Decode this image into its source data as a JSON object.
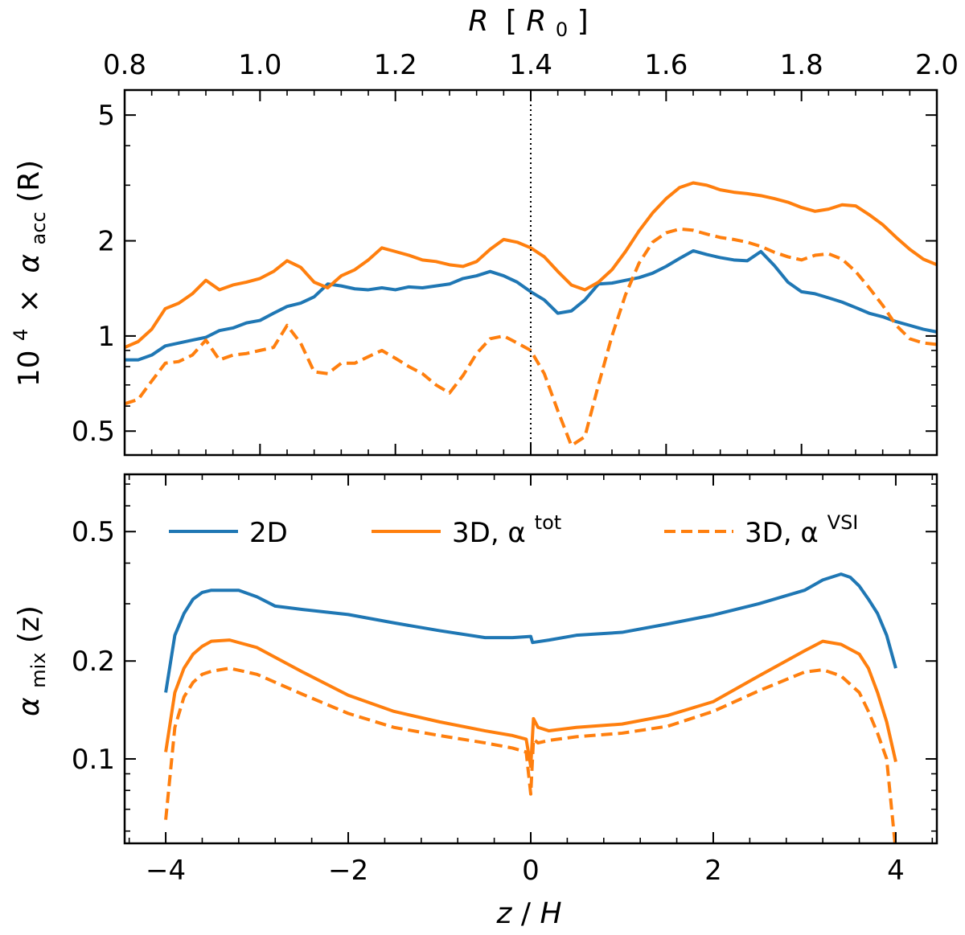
{
  "chart_data": [
    {
      "type": "line",
      "panel": "top",
      "title": "",
      "xlabel_top": {
        "main": "R",
        "bracket_open": "[",
        "unit_base": "R",
        "unit_sub": "0",
        "bracket_close": "]"
      },
      "ylabel": {
        "prefix": "10",
        "prefix_sup": "4",
        "times": "×",
        "symbol": "α",
        "sub": "acc",
        "arg": "(R)"
      },
      "xscale": "linear",
      "yscale": "log",
      "xlim": [
        0.8,
        2.0
      ],
      "ylim": [
        0.42,
        6.0
      ],
      "xticks": [
        0.8,
        1.0,
        1.2,
        1.4,
        1.6,
        1.8,
        2.0
      ],
      "xtick_labels": [
        "0.8",
        "1.0",
        "1.2",
        "1.4",
        "1.6",
        "1.8",
        "2.0"
      ],
      "yticks": [
        0.5,
        1,
        2,
        5
      ],
      "ytick_labels": [
        "0.5",
        "1",
        "2",
        "5"
      ],
      "vline": {
        "x": 1.4,
        "style": "dotted"
      },
      "series": [
        {
          "name": "2D",
          "color": "#1f77b4",
          "dash": "solid",
          "x": [
            0.8,
            0.82,
            0.84,
            0.86,
            0.88,
            0.9,
            0.92,
            0.94,
            0.96,
            0.98,
            1.0,
            1.02,
            1.04,
            1.06,
            1.08,
            1.1,
            1.12,
            1.14,
            1.16,
            1.18,
            1.2,
            1.22,
            1.24,
            1.26,
            1.28,
            1.3,
            1.32,
            1.34,
            1.36,
            1.38,
            1.4,
            1.42,
            1.44,
            1.46,
            1.48,
            1.5,
            1.52,
            1.54,
            1.56,
            1.58,
            1.6,
            1.62,
            1.64,
            1.66,
            1.68,
            1.7,
            1.72,
            1.74,
            1.76,
            1.78,
            1.8,
            1.82,
            1.84,
            1.86,
            1.88,
            1.9,
            1.92,
            1.94,
            1.96,
            1.98,
            2.0
          ],
          "y": [
            0.84,
            0.84,
            0.87,
            0.93,
            0.95,
            0.97,
            0.99,
            1.04,
            1.06,
            1.1,
            1.12,
            1.18,
            1.24,
            1.27,
            1.33,
            1.46,
            1.44,
            1.41,
            1.4,
            1.42,
            1.4,
            1.43,
            1.42,
            1.44,
            1.46,
            1.52,
            1.55,
            1.6,
            1.55,
            1.48,
            1.38,
            1.3,
            1.18,
            1.2,
            1.3,
            1.46,
            1.47,
            1.5,
            1.53,
            1.58,
            1.66,
            1.76,
            1.86,
            1.81,
            1.77,
            1.74,
            1.73,
            1.85,
            1.67,
            1.48,
            1.38,
            1.36,
            1.32,
            1.28,
            1.23,
            1.18,
            1.15,
            1.11,
            1.08,
            1.05,
            1.03
          ]
        },
        {
          "name": "3D, α^tot",
          "color": "#ff7f0e",
          "dash": "solid",
          "x": [
            0.8,
            0.82,
            0.84,
            0.86,
            0.88,
            0.9,
            0.92,
            0.94,
            0.96,
            0.98,
            1.0,
            1.02,
            1.04,
            1.06,
            1.08,
            1.1,
            1.12,
            1.14,
            1.16,
            1.18,
            1.2,
            1.22,
            1.24,
            1.26,
            1.28,
            1.3,
            1.32,
            1.34,
            1.36,
            1.38,
            1.4,
            1.42,
            1.44,
            1.46,
            1.48,
            1.5,
            1.52,
            1.54,
            1.56,
            1.58,
            1.6,
            1.62,
            1.64,
            1.66,
            1.68,
            1.7,
            1.72,
            1.74,
            1.76,
            1.78,
            1.8,
            1.82,
            1.84,
            1.86,
            1.88,
            1.9,
            1.92,
            1.94,
            1.96,
            1.98,
            2.0
          ],
          "y": [
            0.92,
            0.96,
            1.05,
            1.22,
            1.27,
            1.36,
            1.5,
            1.4,
            1.45,
            1.48,
            1.52,
            1.6,
            1.73,
            1.65,
            1.48,
            1.42,
            1.55,
            1.62,
            1.74,
            1.9,
            1.85,
            1.8,
            1.74,
            1.72,
            1.68,
            1.66,
            1.72,
            1.88,
            2.02,
            1.98,
            1.9,
            1.78,
            1.6,
            1.45,
            1.4,
            1.48,
            1.62,
            1.85,
            2.15,
            2.45,
            2.72,
            2.95,
            3.05,
            3.0,
            2.9,
            2.85,
            2.82,
            2.78,
            2.72,
            2.65,
            2.55,
            2.48,
            2.52,
            2.6,
            2.58,
            2.42,
            2.25,
            2.05,
            1.88,
            1.75,
            1.68
          ]
        },
        {
          "name": "3D, α^VSI",
          "color": "#ff7f0e",
          "dash": "dashed",
          "x": [
            0.8,
            0.82,
            0.84,
            0.86,
            0.88,
            0.9,
            0.92,
            0.94,
            0.96,
            0.98,
            1.0,
            1.02,
            1.04,
            1.06,
            1.08,
            1.1,
            1.12,
            1.14,
            1.16,
            1.18,
            1.2,
            1.22,
            1.24,
            1.26,
            1.28,
            1.3,
            1.32,
            1.34,
            1.36,
            1.38,
            1.4,
            1.42,
            1.44,
            1.46,
            1.48,
            1.5,
            1.52,
            1.54,
            1.56,
            1.58,
            1.6,
            1.62,
            1.64,
            1.66,
            1.68,
            1.7,
            1.72,
            1.74,
            1.76,
            1.78,
            1.8,
            1.82,
            1.84,
            1.86,
            1.88,
            1.9,
            1.92,
            1.94,
            1.96,
            1.98,
            2.0
          ],
          "y": [
            0.61,
            0.63,
            0.72,
            0.82,
            0.83,
            0.87,
            0.97,
            0.84,
            0.87,
            0.88,
            0.9,
            0.92,
            1.08,
            0.95,
            0.77,
            0.76,
            0.82,
            0.82,
            0.86,
            0.9,
            0.85,
            0.8,
            0.76,
            0.7,
            0.66,
            0.75,
            0.88,
            0.98,
            1.0,
            0.95,
            0.9,
            0.76,
            0.58,
            0.45,
            0.48,
            0.7,
            1.0,
            1.35,
            1.7,
            1.98,
            2.12,
            2.18,
            2.16,
            2.1,
            2.05,
            2.02,
            1.98,
            1.92,
            1.84,
            1.78,
            1.74,
            1.8,
            1.82,
            1.75,
            1.6,
            1.42,
            1.25,
            1.08,
            0.98,
            0.95,
            0.94
          ]
        }
      ]
    },
    {
      "type": "line",
      "panel": "bottom",
      "title": "",
      "xlabel": {
        "a": "z",
        "slash": "/",
        "b": "H"
      },
      "ylabel": {
        "symbol": "α",
        "sub": "mix",
        "arg": "(z)"
      },
      "xscale": "linear",
      "yscale": "log",
      "xlim": [
        -4.45,
        4.45
      ],
      "ylim": [
        0.055,
        0.75
      ],
      "xticks": [
        -4,
        -2,
        0,
        2,
        4
      ],
      "xtick_labels": [
        "−4",
        "−2",
        "0",
        "2",
        "4"
      ],
      "yticks": [
        0.1,
        0.2,
        0.5
      ],
      "ytick_labels": [
        "0.1",
        "0.2",
        "0.5"
      ],
      "legend": {
        "location": "upper-center",
        "columns": 3
      },
      "series": [
        {
          "name": "2D",
          "label": "2D",
          "color": "#1f77b4",
          "dash": "solid",
          "x": [
            -4.0,
            -3.9,
            -3.8,
            -3.7,
            -3.6,
            -3.5,
            -3.4,
            -3.2,
            -3.0,
            -2.8,
            -2.5,
            -2.0,
            -1.5,
            -1.0,
            -0.5,
            -0.2,
            0.0,
            0.02,
            0.2,
            0.5,
            1.0,
            1.5,
            2.0,
            2.5,
            3.0,
            3.2,
            3.4,
            3.5,
            3.6,
            3.7,
            3.8,
            3.9,
            4.0
          ],
          "y": [
            0.16,
            0.24,
            0.28,
            0.31,
            0.325,
            0.33,
            0.33,
            0.33,
            0.315,
            0.295,
            0.288,
            0.278,
            0.262,
            0.248,
            0.236,
            0.236,
            0.238,
            0.228,
            0.232,
            0.24,
            0.245,
            0.26,
            0.277,
            0.3,
            0.33,
            0.355,
            0.37,
            0.362,
            0.34,
            0.31,
            0.28,
            0.24,
            0.19
          ]
        },
        {
          "name": "3D, α^tot",
          "label_main": "3D, α",
          "label_sup": "tot",
          "color": "#ff7f0e",
          "dash": "solid",
          "x": [
            -4.0,
            -3.9,
            -3.8,
            -3.7,
            -3.6,
            -3.5,
            -3.3,
            -3.0,
            -2.5,
            -2.0,
            -1.5,
            -1.0,
            -0.5,
            -0.2,
            -0.05,
            0.0,
            0.03,
            0.08,
            0.2,
            0.5,
            1.0,
            1.5,
            2.0,
            2.5,
            3.0,
            3.2,
            3.4,
            3.6,
            3.7,
            3.8,
            3.9,
            4.0
          ],
          "y": [
            0.105,
            0.16,
            0.19,
            0.21,
            0.222,
            0.23,
            0.232,
            0.22,
            0.185,
            0.157,
            0.14,
            0.13,
            0.122,
            0.118,
            0.115,
            0.095,
            0.133,
            0.125,
            0.122,
            0.125,
            0.128,
            0.136,
            0.15,
            0.18,
            0.215,
            0.23,
            0.225,
            0.21,
            0.19,
            0.16,
            0.13,
            0.098
          ]
        },
        {
          "name": "3D, α^VSI",
          "label_main": "3D, α",
          "label_sup": "VSI",
          "color": "#ff7f0e",
          "dash": "dashed",
          "x": [
            -4.0,
            -3.9,
            -3.8,
            -3.7,
            -3.6,
            -3.5,
            -3.3,
            -3.0,
            -2.5,
            -2.0,
            -1.5,
            -1.0,
            -0.5,
            -0.2,
            -0.05,
            0.0,
            0.03,
            0.08,
            0.2,
            0.5,
            1.0,
            1.5,
            2.0,
            2.5,
            3.0,
            3.2,
            3.4,
            3.6,
            3.7,
            3.8,
            3.9,
            4.0
          ],
          "y": [
            0.065,
            0.125,
            0.155,
            0.172,
            0.182,
            0.186,
            0.19,
            0.182,
            0.158,
            0.138,
            0.125,
            0.118,
            0.112,
            0.108,
            0.105,
            0.078,
            0.115,
            0.112,
            0.114,
            0.117,
            0.12,
            0.126,
            0.14,
            0.162,
            0.185,
            0.188,
            0.18,
            0.16,
            0.14,
            0.12,
            0.1,
            0.052
          ]
        }
      ]
    }
  ]
}
